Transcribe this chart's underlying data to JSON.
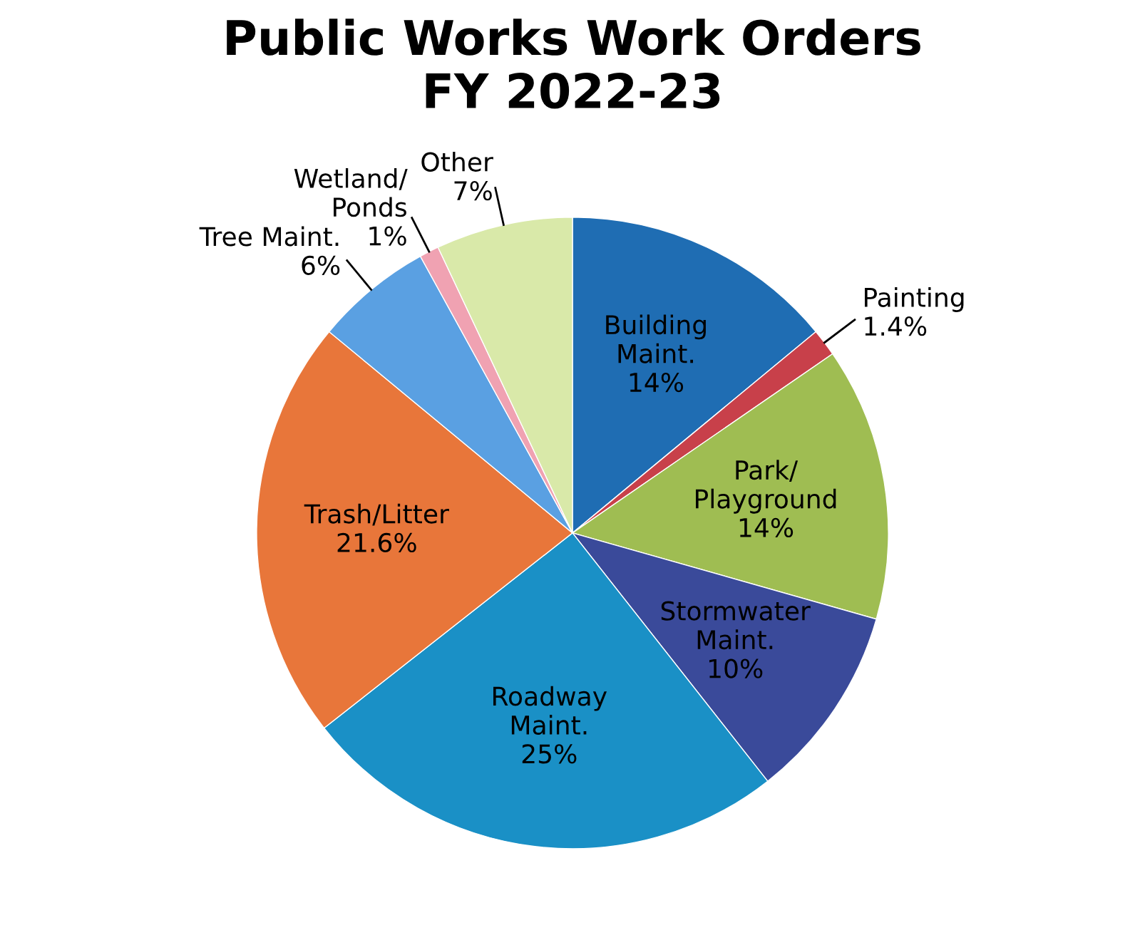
{
  "chart_data": {
    "type": "pie",
    "title": "Public Works Work Orders\nFY 2022-23",
    "categories": [
      "Building\nMaint.",
      "Painting",
      "Park/\nPlayground",
      "Stormwater\nMaint.",
      "Roadway\nMaint.",
      "Trash/Litter",
      "Tree Maint.",
      "Wetland/\nPonds",
      "Other"
    ],
    "values": [
      14,
      1.4,
      14,
      10,
      25,
      21.6,
      6,
      1,
      7
    ],
    "colors": [
      "#1f6db3",
      "#c8404a",
      "#9fbd52",
      "#3a4a9a",
      "#1a90c6",
      "#e8763a",
      "#5aa0e2",
      "#f0a2b2",
      "#d9e9a9"
    ],
    "value_labels": [
      "14%",
      "1.4%",
      "14%",
      "10%",
      "25%",
      "21.6%",
      "6%",
      "1%",
      "7%"
    ],
    "legend": false
  }
}
